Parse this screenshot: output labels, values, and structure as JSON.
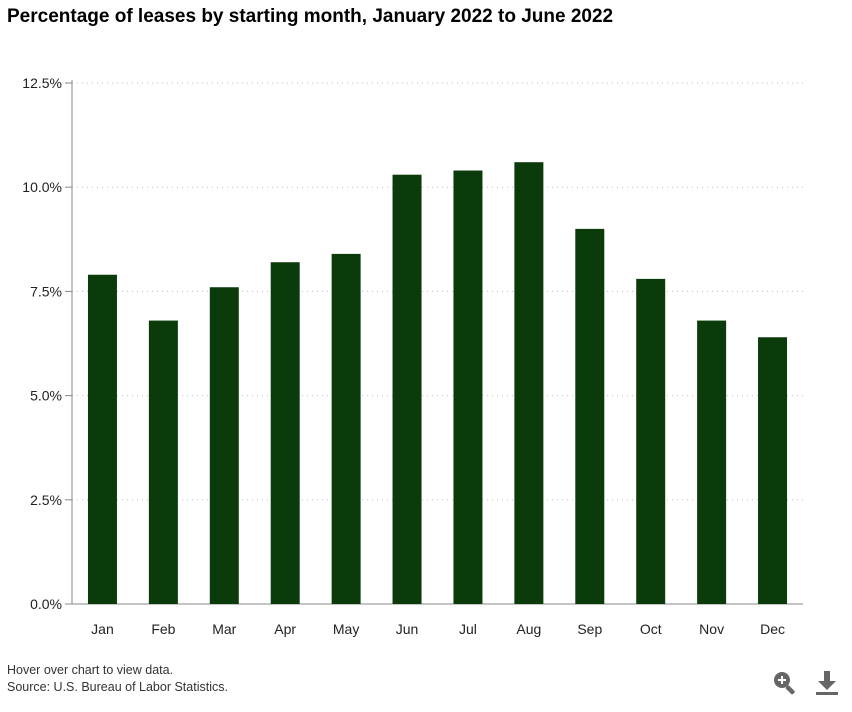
{
  "title": "Percentage of leases by starting month, January 2022 to June 2022",
  "footer": {
    "hint": "Hover over chart to view data.",
    "source": "Source: U.S. Bureau of Labor Statistics."
  },
  "tools": {
    "zoom_icon": "zoom-in-icon",
    "download_icon": "download-icon"
  },
  "colors": {
    "bar": "#0b3b0b",
    "grid": "#bfbfbf",
    "axis": "#8a8a8a"
  },
  "chart_data": {
    "type": "bar",
    "categories": [
      "Jan",
      "Feb",
      "Mar",
      "Apr",
      "May",
      "Jun",
      "Jul",
      "Aug",
      "Sep",
      "Oct",
      "Nov",
      "Dec"
    ],
    "values": [
      7.9,
      6.8,
      7.6,
      8.2,
      8.4,
      10.3,
      10.4,
      10.6,
      9.0,
      7.8,
      6.8,
      6.4
    ],
    "yticks": [
      "0.0%",
      "2.5%",
      "5.0%",
      "7.5%",
      "10.0%",
      "12.5%"
    ],
    "ylim": [
      0,
      12.5
    ],
    "grid": true,
    "legend": "none"
  }
}
